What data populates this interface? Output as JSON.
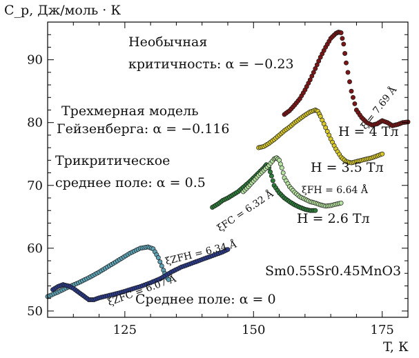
{
  "labels": {
    "y_axis": "C_p, Дж/моль · К",
    "x_axis": "T, К",
    "ann_unusual_line1": "Необычная",
    "ann_unusual_line2": "критичность: α = −0.23",
    "ann_heis_line1": "Трехмерная модель",
    "ann_heis_line2": "Гейзенберга: α = −0.116",
    "ann_tri_line1": "Трикритическое",
    "ann_tri_line2": "среднее поле: α = 0.5",
    "ann_mean": "Среднее поле: α = 0",
    "field_4": "H = 4 Тл",
    "field_3_5": "H = 3.5 Тл",
    "field_2_6": "H = 2.6 Тл",
    "compound": "Sm0.55Sr0.45MnO3",
    "xi_zfc": "ξZFC = 6.07 Å",
    "xi_zfh": "ξZFH = 6.34 Å",
    "xi_fc": "ξFC = 6.32 Å",
    "xi_4": "ξ = 7.69 Å",
    "xi_fh": "ξFH = 6.64 Å"
  },
  "colors": {
    "zfc_curve": "#5fa3b5",
    "zfh_curve": "#2c3c8a",
    "fc_curve_2_6": "#2e7d3a",
    "fh_curve_2_6": "#b7e3a2",
    "curve_3_5": "#d8c92a",
    "curve_4": "#7a1616"
  },
  "chart_data": {
    "type": "scatter",
    "x_range": [
      110,
      180
    ],
    "y_range": [
      49,
      96
    ],
    "x_ticks": [
      125,
      150,
      175
    ],
    "y_ticks": [
      50,
      60,
      70,
      80,
      90
    ],
    "grid": false,
    "series": [
      {
        "name": "ZFC",
        "x": [
          110,
          112,
          114,
          116,
          118,
          120,
          122,
          124,
          126,
          128,
          129.5,
          130.5,
          131.5,
          132.5,
          133,
          133.5
        ],
        "y": [
          52.3,
          53.0,
          53.8,
          54.5,
          55.3,
          56.2,
          57.2,
          58.2,
          59.2,
          60.0,
          60.2,
          59.9,
          58.5,
          56.5,
          55.5,
          55.0
        ]
      },
      {
        "name": "ZFH",
        "x": [
          111,
          112,
          113,
          114,
          115,
          116,
          117,
          118,
          119,
          120,
          122,
          124,
          126,
          128,
          130,
          132,
          134,
          136,
          138,
          140,
          142,
          144,
          145
        ],
        "y": [
          53.4,
          53.9,
          54.2,
          54.0,
          53.6,
          53.0,
          52.4,
          51.8,
          51.8,
          52.1,
          52.5,
          52.9,
          53.4,
          53.9,
          54.5,
          55.2,
          56.2,
          57.0,
          57.6,
          58.2,
          58.8,
          59.4,
          59.8
        ]
      },
      {
        "name": "FC",
        "x": [
          142,
          143,
          144,
          145,
          146,
          147,
          148,
          149,
          150,
          151,
          152,
          152.5,
          153,
          153.5,
          154,
          155,
          156,
          157,
          158,
          159,
          160,
          161,
          162
        ],
        "y": [
          66.5,
          67.0,
          67.6,
          68.0,
          68.5,
          69.0,
          69.7,
          70.4,
          71.2,
          72.0,
          72.8,
          73.3,
          72.8,
          71.5,
          70.0,
          68.8,
          68.0,
          67.4,
          66.9,
          66.5,
          66.2,
          66.0,
          66.0
        ]
      },
      {
        "name": "FH",
        "x": [
          148,
          149,
          150,
          151,
          152,
          153,
          154,
          154.5,
          155,
          155.5,
          156,
          157,
          158,
          159,
          160,
          161,
          162,
          163,
          164,
          165,
          166,
          167
        ],
        "y": [
          69.0,
          69.8,
          70.7,
          71.6,
          72.4,
          73.2,
          74.2,
          74.4,
          74.0,
          72.8,
          71.2,
          69.8,
          68.9,
          68.2,
          67.8,
          67.4,
          67.2,
          66.9,
          66.7,
          66.8,
          67.0,
          67.2
        ]
      },
      {
        "name": "H = 3.5 Тл",
        "x": [
          151,
          152,
          153,
          154,
          155,
          156,
          157,
          158,
          159,
          160,
          161,
          162,
          162.5,
          163,
          164,
          165,
          166,
          167,
          168,
          169,
          170,
          171,
          172,
          173,
          174,
          175
        ],
        "y": [
          76.0,
          76.2,
          76.7,
          77.3,
          78.0,
          78.7,
          79.3,
          80.0,
          80.6,
          81.2,
          81.7,
          82.0,
          81.8,
          81.0,
          79.2,
          77.4,
          75.8,
          74.5,
          73.8,
          73.6,
          73.8,
          74.0,
          74.2,
          74.4,
          74.7,
          75.0
        ]
      },
      {
        "name": "H = 4 Тл",
        "x": [
          156,
          157,
          158,
          159,
          160,
          161,
          162,
          163,
          164,
          165,
          166,
          166.5,
          167,
          167.5,
          168,
          169,
          170,
          171,
          172,
          173,
          174,
          175,
          176,
          177,
          178,
          179,
          180
        ],
        "y": [
          81.3,
          81.9,
          82.8,
          83.8,
          85.2,
          86.8,
          88.6,
          90.4,
          92.0,
          93.4,
          94.2,
          94.4,
          94.3,
          92.5,
          89.5,
          85.0,
          82.0,
          80.8,
          80.0,
          79.6,
          79.8,
          80.3,
          80.0,
          79.5,
          79.7,
          80.0,
          80.1
        ]
      }
    ]
  }
}
